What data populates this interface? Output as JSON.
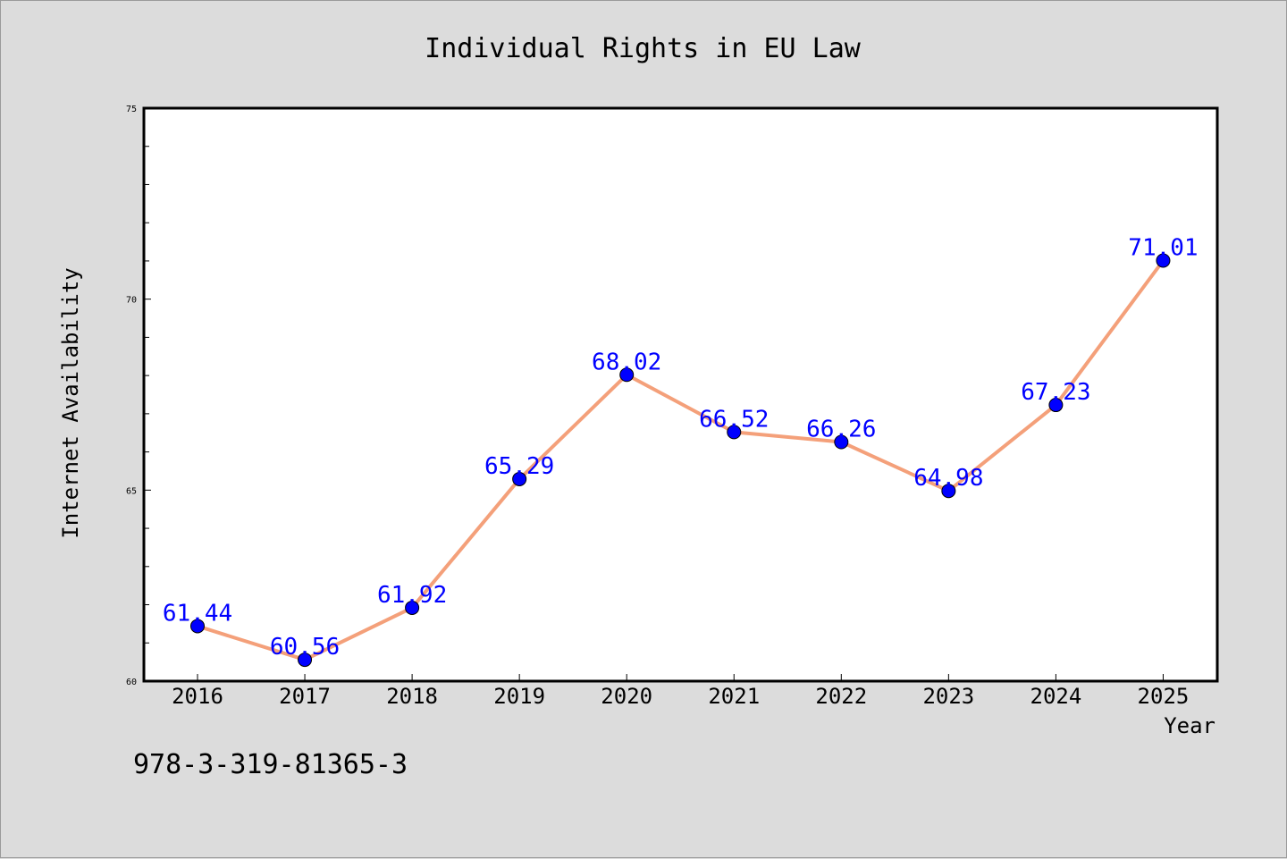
{
  "chart_data": {
    "type": "line",
    "title": "Individual Rights in EU Law",
    "xlabel": "Year",
    "ylabel": "Internet Availability",
    "categories": [
      "2016",
      "2017",
      "2018",
      "2019",
      "2020",
      "2021",
      "2022",
      "2023",
      "2024",
      "2025"
    ],
    "series": [
      {
        "values": [
          61.44,
          60.56,
          61.92,
          65.29,
          68.02,
          66.52,
          66.26,
          64.98,
          67.23,
          71.01
        ]
      }
    ],
    "ylim": [
      60,
      75
    ],
    "y_ticks": [
      "60",
      "65",
      "70",
      "75"
    ],
    "data_labels": [
      "61.44",
      "60.56",
      "61.92",
      "65.29",
      "68.02",
      "66.52",
      "66.26",
      "64.98",
      "67.23",
      "71.01"
    ],
    "grid": false,
    "legend": "none",
    "colors": {
      "line": "#f4a07a",
      "marker": "#0000ff",
      "label": "#0000ff",
      "frame": "#000000"
    }
  },
  "footer": {
    "isbn": "978-3-319-81365-3"
  }
}
